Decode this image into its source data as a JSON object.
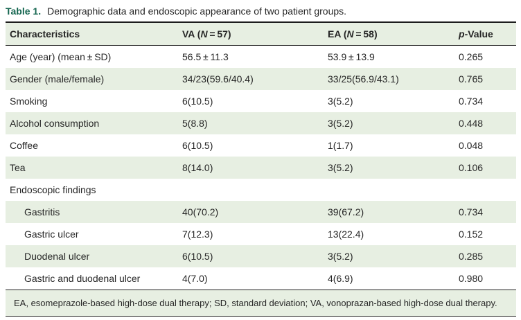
{
  "title": {
    "label": "Table 1.",
    "text": "Demographic data and endoscopic appearance of two patient groups."
  },
  "table": {
    "header": [
      {
        "label": "Characteristics"
      },
      {
        "pre": "VA (",
        "it": "N",
        "post": " = 57)"
      },
      {
        "pre": "EA (",
        "it": "N",
        "post": " = 58)"
      },
      {
        "it": "p",
        "post": "-Value"
      }
    ],
    "rows": [
      {
        "label": "Age (year) (mean ± SD)",
        "va": "56.5 ± 11.3",
        "ea": "53.9 ± 13.9",
        "p": "0.265",
        "indent": false
      },
      {
        "label": "Gender (male/female)",
        "va": "34/23(59.6/40.4)",
        "ea": "33/25(56.9/43.1)",
        "p": "0.765",
        "indent": false
      },
      {
        "label": "Smoking",
        "va": "6(10.5)",
        "ea": "3(5.2)",
        "p": "0.734",
        "indent": false
      },
      {
        "label": "Alcohol consumption",
        "va": "5(8.8)",
        "ea": "3(5.2)",
        "p": "0.448",
        "indent": false
      },
      {
        "label": "Coffee",
        "va": "6(10.5)",
        "ea": "1(1.7)",
        "p": "0.048",
        "indent": false
      },
      {
        "label": "Tea",
        "va": "8(14.0)",
        "ea": "3(5.2)",
        "p": "0.106",
        "indent": false
      },
      {
        "label": "Endoscopic findings",
        "va": "",
        "ea": "",
        "p": "",
        "indent": false
      },
      {
        "label": "Gastritis",
        "va": "40(70.2)",
        "ea": "39(67.2)",
        "p": "0.734",
        "indent": true
      },
      {
        "label": "Gastric ulcer",
        "va": "7(12.3)",
        "ea": "13(22.4)",
        "p": "0.152",
        "indent": true
      },
      {
        "label": "Duodenal ulcer",
        "va": "6(10.5)",
        "ea": "3(5.2)",
        "p": "0.285",
        "indent": true
      },
      {
        "label": "Gastric and duodenal ulcer",
        "va": "4(7.0)",
        "ea": "4(6.9)",
        "p": "0.980",
        "indent": true
      }
    ]
  },
  "footnote": "EA, esomeprazole-based high-dose dual therapy; SD, standard deviation; VA, vonoprazan-based high-dose dual therapy.",
  "colors": {
    "accent_green": "#156650",
    "band_green": "#e7efe2",
    "rule": "#1d1d1d",
    "text": "#262626"
  }
}
